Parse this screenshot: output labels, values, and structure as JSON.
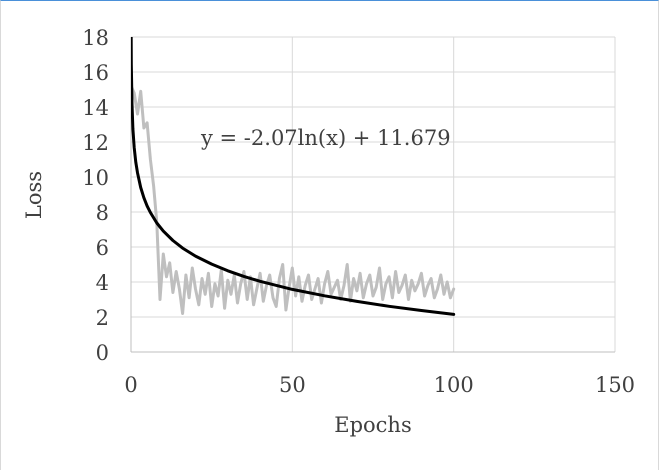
{
  "chart_data": {
    "type": "line",
    "xlabel": "Epochs",
    "ylabel": "Loss",
    "xlim": [
      0,
      150
    ],
    "ylim": [
      0,
      18
    ],
    "x_ticks": [
      0,
      50,
      100,
      150
    ],
    "y_ticks": [
      0,
      2,
      4,
      6,
      8,
      10,
      12,
      14,
      16,
      18
    ],
    "x_tick_labels": [
      "0",
      "50",
      "100",
      "150"
    ],
    "y_tick_labels": [
      "0",
      "2",
      "4",
      "6",
      "8",
      "10",
      "12",
      "14",
      "16",
      "18"
    ],
    "grid": true,
    "legend": "none",
    "annotation": "y = -2.07ln(x) + 11.679",
    "series": [
      {
        "style": "raw-loss",
        "color": "#bfbfbf",
        "x": [
          0,
          1,
          2,
          3,
          4,
          5,
          6,
          7,
          8,
          9,
          10,
          11,
          12,
          13,
          14,
          15,
          16,
          17,
          18,
          19,
          20,
          21,
          22,
          23,
          24,
          25,
          26,
          27,
          28,
          29,
          30,
          31,
          32,
          33,
          34,
          35,
          36,
          37,
          38,
          39,
          40,
          41,
          42,
          43,
          44,
          45,
          46,
          47,
          48,
          49,
          50,
          51,
          52,
          53,
          54,
          55,
          56,
          57,
          58,
          59,
          60,
          61,
          62,
          63,
          64,
          65,
          66,
          67,
          68,
          69,
          70,
          71,
          72,
          73,
          74,
          75,
          76,
          77,
          78,
          79,
          80,
          81,
          82,
          83,
          84,
          85,
          86,
          87,
          88,
          89,
          90,
          91,
          92,
          93,
          94,
          95,
          96,
          97,
          98,
          99,
          100
        ],
        "values": [
          15.2,
          14.8,
          13.6,
          14.9,
          12.8,
          13.1,
          11.0,
          9.5,
          7.4,
          3.0,
          5.6,
          4.3,
          5.1,
          3.4,
          4.6,
          3.6,
          2.2,
          4.4,
          3.1,
          4.8,
          3.6,
          2.7,
          4.2,
          3.3,
          4.5,
          2.6,
          3.9,
          3.2,
          4.7,
          2.5,
          4.1,
          3.3,
          4.4,
          2.8,
          3.9,
          4.6,
          3.0,
          4.3,
          2.7,
          3.6,
          4.5,
          2.9,
          3.8,
          4.4,
          3.1,
          2.6,
          4.2,
          5.0,
          2.4,
          3.7,
          4.8,
          3.2,
          4.3,
          2.9,
          3.8,
          4.4,
          3.0,
          3.6,
          4.2,
          2.8,
          3.9,
          4.6,
          3.3,
          3.7,
          4.1,
          3.0,
          3.8,
          5.0,
          2.9,
          4.2,
          3.5,
          4.5,
          3.1,
          3.9,
          4.4,
          3.2,
          3.7,
          4.8,
          3.0,
          3.9,
          4.3,
          3.1,
          4.6,
          3.4,
          3.8,
          4.4,
          3.0,
          4.1,
          3.5,
          3.9,
          4.5,
          3.2,
          3.8,
          4.2,
          3.1,
          3.6,
          4.4,
          3.3,
          4.0,
          3.1,
          3.6
        ]
      },
      {
        "style": "log-trendline",
        "color": "#000000",
        "formula": {
          "a": -2.07,
          "b": 11.679
        },
        "x": [
          0.03,
          0.1,
          0.3,
          0.6,
          1,
          1.5,
          2,
          3,
          4,
          5,
          6,
          8,
          10,
          13,
          16,
          20,
          25,
          30,
          35,
          40,
          50,
          60,
          70,
          80,
          90,
          100
        ],
        "values": [
          18.94,
          16.45,
          14.17,
          12.74,
          11.68,
          10.84,
          10.24,
          9.4,
          8.81,
          8.35,
          7.97,
          7.37,
          6.91,
          6.37,
          5.94,
          5.48,
          5.02,
          4.64,
          4.32,
          4.04,
          3.58,
          3.21,
          2.89,
          2.61,
          2.37,
          2.15
        ]
      }
    ]
  }
}
